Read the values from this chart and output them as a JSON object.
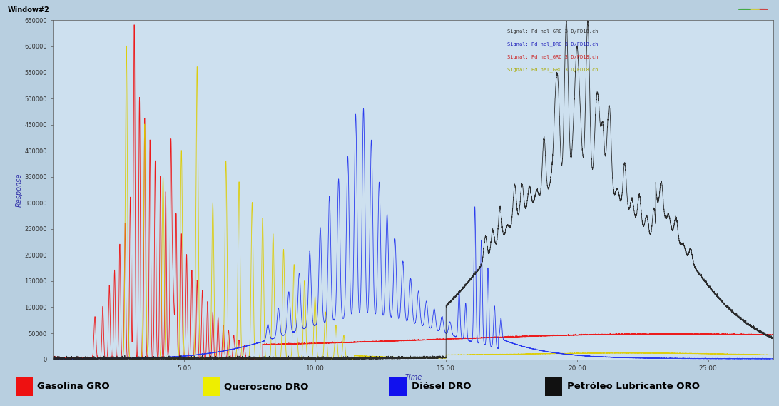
{
  "title": "Window#2",
  "ylabel": "Response",
  "xlabel": "Time",
  "outer_bg": "#b8cfe0",
  "titlebar_bg": "#8aafc8",
  "plot_bg": "#cde0ef",
  "ylim": [
    0,
    650000
  ],
  "xlim": [
    0,
    27.5
  ],
  "ytick_vals": [
    0,
    50000,
    100000,
    150000,
    200000,
    250000,
    300000,
    350000,
    400000,
    450000,
    500000,
    550000,
    600000,
    650000
  ],
  "xtick_vals": [
    5.0,
    10.0,
    15.0,
    20.0,
    25.0
  ],
  "xtick_labels": [
    "5.00",
    "10.00",
    "15.00",
    "20.00",
    "25.00"
  ],
  "legend_bg": "#f0f0f0",
  "legend_items": [
    {
      "label": "Gasolina GRO",
      "color": "#ee1111"
    },
    {
      "label": "Queroseno DRO",
      "color": "#eeee00"
    },
    {
      "label": "Diésel DRO",
      "color": "#1111ee"
    },
    {
      "label": "Petróleo Lubricante ORO",
      "color": "#111111"
    }
  ],
  "signal_text": [
    {
      "text": "Signal: Pd nel_GRO 3 D/FD18.ch",
      "color": "#333333"
    },
    {
      "text": "Signal: Pd nel_DRO 3 D/FD18.ch",
      "color": "#2222bb"
    },
    {
      "text": "Signal: Pd nel_GRO 3 D/FD18.ch",
      "color": "#cc2222"
    },
    {
      "text": "Signal: Pd nel_GRO 3 D/FD18.ch",
      "color": "#aaaa00"
    }
  ]
}
